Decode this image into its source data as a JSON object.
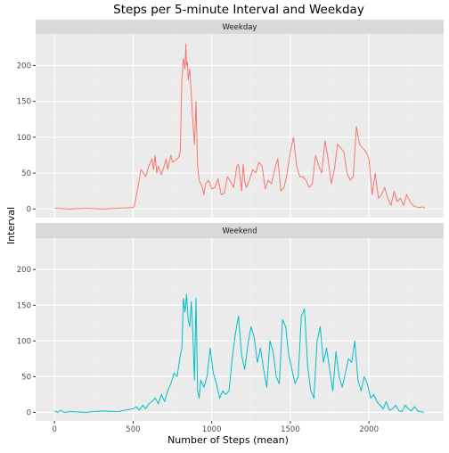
{
  "chart_data": {
    "type": "line",
    "title": "Steps per 5-minute Interval and Weekday",
    "xlabel": "Number of Steps (mean)",
    "ylabel": "Interval",
    "xlim": [
      -120,
      2475
    ],
    "ylim": [
      -12,
      244
    ],
    "x_ticks": [
      0,
      500,
      1000,
      1500,
      2000
    ],
    "y_ticks": [
      0,
      50,
      100,
      150,
      200
    ],
    "grid": true,
    "colors": {
      "weekday": "#F8766D",
      "weekend": "#00BFC4",
      "panel_bg": "#EBEBEB",
      "strip_bg": "#D9D9D9"
    },
    "panels": [
      {
        "strip": "Weekday",
        "color": "#F8766D",
        "x": [
          0,
          100,
          200,
          300,
          400,
          500,
          510,
          530,
          550,
          560,
          580,
          600,
          620,
          630,
          640,
          650,
          660,
          680,
          700,
          710,
          720,
          740,
          750,
          770,
          790,
          800,
          810,
          820,
          830,
          835,
          840,
          845,
          850,
          860,
          870,
          880,
          890,
          900,
          910,
          920,
          930,
          940,
          950,
          960,
          980,
          1000,
          1020,
          1040,
          1060,
          1080,
          1100,
          1120,
          1140,
          1160,
          1170,
          1180,
          1190,
          1200,
          1210,
          1220,
          1240,
          1260,
          1280,
          1300,
          1320,
          1340,
          1360,
          1380,
          1400,
          1420,
          1440,
          1460,
          1480,
          1500,
          1520,
          1540,
          1560,
          1580,
          1600,
          1620,
          1640,
          1660,
          1680,
          1700,
          1720,
          1740,
          1760,
          1780,
          1800,
          1820,
          1840,
          1860,
          1880,
          1900,
          1920,
          1940,
          1960,
          1980,
          2000,
          2020,
          2040,
          2060,
          2080,
          2100,
          2120,
          2140,
          2160,
          2180,
          2200,
          2220,
          2240,
          2260,
          2280,
          2300,
          2320,
          2340,
          2355
        ],
        "y": [
          1,
          0,
          1,
          0,
          1,
          2,
          5,
          30,
          55,
          52,
          45,
          60,
          70,
          55,
          75,
          50,
          60,
          48,
          62,
          70,
          55,
          75,
          65,
          68,
          72,
          80,
          180,
          210,
          195,
          230,
          200,
          205,
          180,
          195,
          160,
          120,
          90,
          150,
          60,
          40,
          35,
          30,
          20,
          35,
          40,
          28,
          30,
          42,
          20,
          22,
          45,
          38,
          30,
          60,
          62,
          45,
          25,
          62,
          38,
          30,
          40,
          55,
          50,
          65,
          60,
          28,
          40,
          35,
          55,
          70,
          25,
          30,
          50,
          80,
          100,
          60,
          45,
          45,
          40,
          30,
          35,
          75,
          60,
          50,
          95,
          70,
          35,
          55,
          90,
          85,
          80,
          50,
          40,
          45,
          115,
          90,
          85,
          80,
          70,
          20,
          50,
          15,
          20,
          30,
          15,
          5,
          25,
          10,
          15,
          5,
          20,
          10,
          5,
          3,
          2,
          3,
          1
        ]
      },
      {
        "strip": "Weekend",
        "color": "#00BFC4",
        "x": [
          0,
          20,
          40,
          60,
          100,
          200,
          300,
          400,
          500,
          520,
          540,
          560,
          580,
          600,
          620,
          640,
          660,
          680,
          700,
          720,
          740,
          760,
          780,
          800,
          810,
          820,
          830,
          840,
          850,
          860,
          870,
          880,
          890,
          900,
          910,
          920,
          930,
          940,
          950,
          970,
          990,
          1010,
          1030,
          1050,
          1070,
          1090,
          1110,
          1130,
          1150,
          1170,
          1190,
          1210,
          1230,
          1250,
          1270,
          1290,
          1310,
          1330,
          1350,
          1370,
          1390,
          1410,
          1430,
          1450,
          1470,
          1490,
          1510,
          1530,
          1550,
          1570,
          1590,
          1610,
          1630,
          1650,
          1670,
          1690,
          1710,
          1730,
          1750,
          1770,
          1790,
          1810,
          1830,
          1850,
          1870,
          1890,
          1910,
          1930,
          1950,
          1970,
          1990,
          2010,
          2030,
          2050,
          2070,
          2090,
          2110,
          2130,
          2150,
          2170,
          2190,
          2210,
          2230,
          2250,
          2270,
          2290,
          2310,
          2330,
          2350
        ],
        "y": [
          2,
          0,
          3,
          0,
          1,
          0,
          2,
          1,
          5,
          8,
          3,
          10,
          5,
          12,
          15,
          20,
          12,
          25,
          15,
          30,
          40,
          55,
          50,
          80,
          90,
          160,
          140,
          165,
          130,
          120,
          155,
          110,
          45,
          160,
          30,
          20,
          45,
          40,
          35,
          50,
          90,
          55,
          40,
          20,
          30,
          25,
          30,
          75,
          110,
          135,
          80,
          60,
          95,
          120,
          105,
          70,
          90,
          60,
          35,
          100,
          85,
          50,
          40,
          130,
          120,
          80,
          60,
          40,
          50,
          135,
          145,
          65,
          30,
          20,
          100,
          120,
          70,
          90,
          60,
          30,
          85,
          50,
          35,
          55,
          75,
          70,
          100,
          45,
          30,
          50,
          40,
          20,
          25,
          15,
          10,
          5,
          15,
          3,
          5,
          10,
          2,
          1,
          10,
          5,
          2,
          8,
          2,
          1,
          0
        ]
      }
    ]
  }
}
